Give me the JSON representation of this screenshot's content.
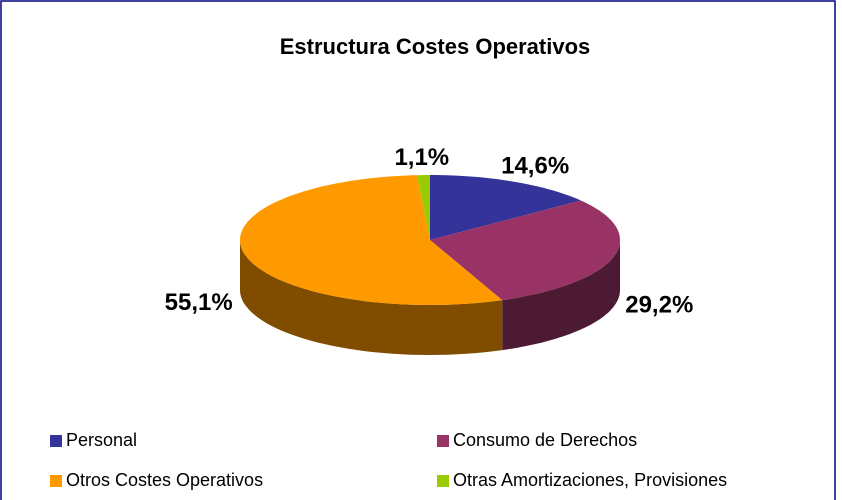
{
  "chart_data": {
    "type": "pie3d",
    "title": "Estructura Costes Operativos",
    "categories": [
      "Personal",
      "Consumo de Derechos",
      "Otros Costes Operativos",
      "Otras Amortizaciones, Provisiones"
    ],
    "values": [
      14.6,
      29.2,
      55.1,
      1.1
    ],
    "value_labels": [
      "14,6%",
      "29,2%",
      "55,1%",
      "1,1%"
    ],
    "colors": [
      "#333399",
      "#993366",
      "#ff9900",
      "#99cc00"
    ],
    "legend": "bottom"
  }
}
